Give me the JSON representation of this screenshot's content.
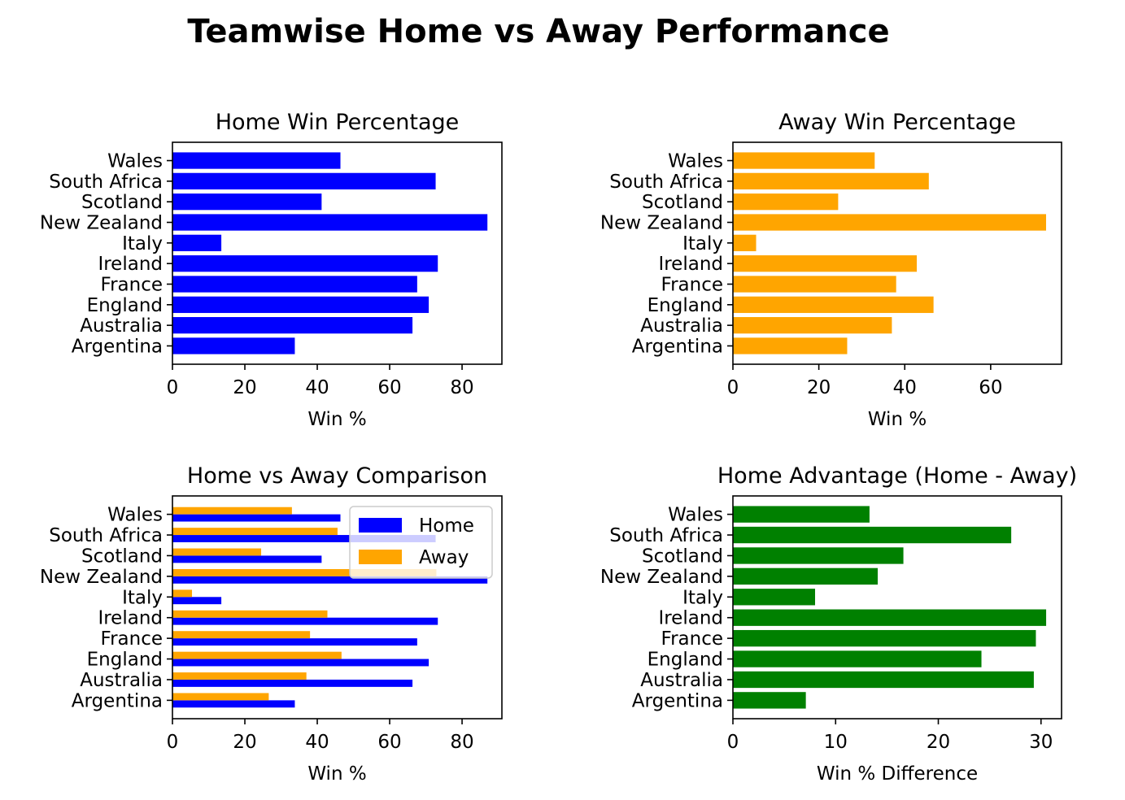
{
  "suptitle": "Teamwise Home vs Away Performance",
  "colors": {
    "home": "#0000ff",
    "away": "#ffa500",
    "diff": "#008000"
  },
  "teams": [
    "Argentina",
    "Australia",
    "England",
    "France",
    "Ireland",
    "Italy",
    "New Zealand",
    "Scotland",
    "South Africa",
    "Wales"
  ],
  "chart_data": [
    {
      "type": "bar",
      "orientation": "horizontal",
      "title": "Home Win Percentage",
      "xlabel": "Win %",
      "ylabel": "",
      "xlim": [
        0,
        91
      ],
      "xticks": [
        0,
        20,
        40,
        60,
        80
      ],
      "categories": [
        "Argentina",
        "Australia",
        "England",
        "France",
        "Ireland",
        "Italy",
        "New Zealand",
        "Scotland",
        "South Africa",
        "Wales"
      ],
      "series": [
        {
          "values": [
            33.8,
            66.3,
            70.8,
            67.6,
            73.3,
            13.5,
            87.0,
            41.2,
            72.7,
            46.4
          ],
          "color": "#0000ff"
        }
      ],
      "grid": false,
      "legend": null
    },
    {
      "type": "bar",
      "orientation": "horizontal",
      "title": "Away Win Percentage",
      "xlabel": "Win %",
      "ylabel": "",
      "xlim": [
        0,
        76.5
      ],
      "xticks": [
        0,
        20,
        40,
        60
      ],
      "categories": [
        "Argentina",
        "Australia",
        "England",
        "France",
        "Ireland",
        "Italy",
        "New Zealand",
        "Scotland",
        "South Africa",
        "Wales"
      ],
      "series": [
        {
          "values": [
            26.6,
            37.0,
            46.7,
            38.0,
            42.8,
            5.4,
            72.9,
            24.5,
            45.6,
            33.0
          ],
          "color": "#ffa500"
        }
      ],
      "grid": false,
      "legend": null
    },
    {
      "type": "bar",
      "orientation": "horizontal",
      "title": "Home vs Away Comparison",
      "xlabel": "Win %",
      "ylabel": "",
      "xlim": [
        0,
        91
      ],
      "xticks": [
        0,
        20,
        40,
        60,
        80
      ],
      "categories": [
        "Argentina",
        "Australia",
        "England",
        "France",
        "Ireland",
        "Italy",
        "New Zealand",
        "Scotland",
        "South Africa",
        "Wales"
      ],
      "series": [
        {
          "name": "Home",
          "values": [
            33.8,
            66.3,
            70.8,
            67.6,
            73.3,
            13.5,
            87.0,
            41.2,
            72.7,
            46.4
          ],
          "color": "#0000ff"
        },
        {
          "name": "Away",
          "values": [
            26.6,
            37.0,
            46.7,
            38.0,
            42.8,
            5.4,
            72.9,
            24.5,
            45.6,
            33.0
          ],
          "color": "#ffa500"
        }
      ],
      "grid": false,
      "legend": "upper right"
    },
    {
      "type": "bar",
      "orientation": "horizontal",
      "title": "Home Advantage (Home - Away)",
      "xlabel": "Win % Difference",
      "ylabel": "",
      "xlim": [
        0,
        32
      ],
      "xticks": [
        0,
        10,
        20,
        30
      ],
      "categories": [
        "Argentina",
        "Australia",
        "England",
        "France",
        "Ireland",
        "Italy",
        "New Zealand",
        "Scotland",
        "South Africa",
        "Wales"
      ],
      "series": [
        {
          "values": [
            7.1,
            29.3,
            24.2,
            29.5,
            30.5,
            8.0,
            14.1,
            16.6,
            27.1,
            13.3
          ],
          "color": "#008000"
        }
      ],
      "grid": false,
      "legend": null
    }
  ]
}
